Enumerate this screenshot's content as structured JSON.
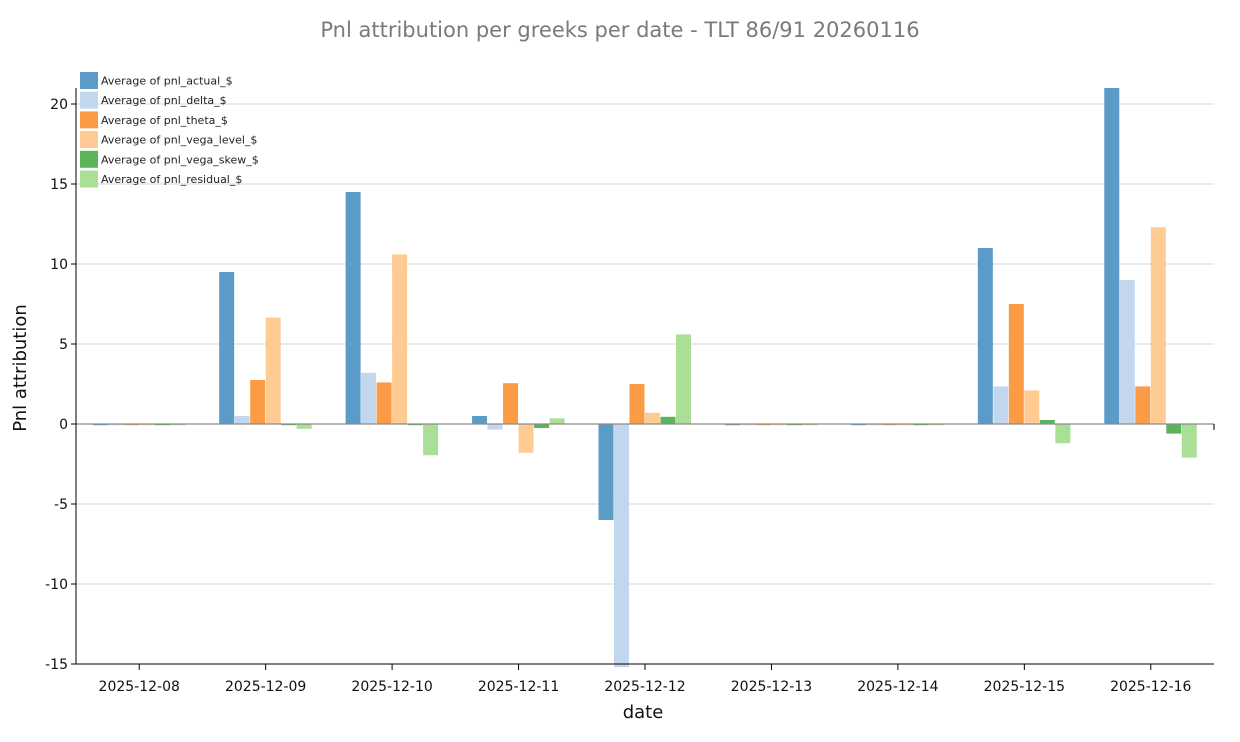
{
  "chart_data": {
    "type": "bar",
    "title": "Pnl attribution per greeks per date - TLT 86/91 20260116",
    "xlabel": "date",
    "ylabel": "Pnl attribution",
    "ylim": [
      -15,
      22
    ],
    "yticks": [
      -15,
      -10,
      -5,
      0,
      5,
      10,
      15,
      20
    ],
    "grid": true,
    "legend_position": "top-left",
    "categories": [
      "2025-12-08",
      "2025-12-09",
      "2025-12-10",
      "2025-12-11",
      "2025-12-12",
      "2025-12-13",
      "2025-12-14",
      "2025-12-15",
      "2025-12-16"
    ],
    "series": [
      {
        "name": "Average of pnl_actual_$",
        "color": "#5b9bc7",
        "values": [
          -0.05,
          9.5,
          14.5,
          0.5,
          -6.0,
          -0.05,
          -0.05,
          11.0,
          21.0
        ]
      },
      {
        "name": "Average of pnl_delta_$",
        "color": "#c2d7ee",
        "values": [
          -0.05,
          0.5,
          3.2,
          -0.35,
          -15.2,
          -0.05,
          -0.05,
          2.35,
          9.0
        ]
      },
      {
        "name": "Average of pnl_theta_$",
        "color": "#fb9b45",
        "values": [
          -0.05,
          2.75,
          2.6,
          2.55,
          2.5,
          -0.05,
          -0.05,
          7.5,
          2.35
        ]
      },
      {
        "name": "Average of pnl_vega_level_$",
        "color": "#fecb93",
        "values": [
          -0.05,
          6.65,
          10.6,
          -1.8,
          0.7,
          -0.05,
          -0.05,
          2.1,
          12.3
        ]
      },
      {
        "name": "Average of pnl_vega_skew_$",
        "color": "#5cb35a",
        "values": [
          -0.05,
          -0.05,
          -0.05,
          -0.25,
          0.45,
          -0.05,
          -0.05,
          0.25,
          -0.6
        ]
      },
      {
        "name": "Average of pnl_residual_$",
        "color": "#a9df96",
        "values": [
          -0.05,
          -0.3,
          -1.95,
          0.35,
          5.6,
          -0.05,
          -0.05,
          -1.2,
          -2.1
        ]
      }
    ]
  }
}
